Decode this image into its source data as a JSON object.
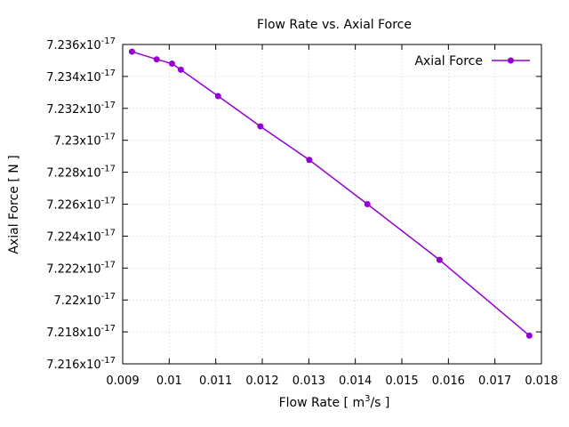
{
  "chart_data": {
    "type": "line",
    "title": "Flow Rate vs. Axial Force",
    "xlabel": "Flow Rate [ m",
    "xlabel_sup": "3",
    "xlabel_end": "/s ]",
    "ylabel": "Axial Force [ N ]",
    "xlim": [
      0.009,
      0.018
    ],
    "ylim": [
      7.216,
      7.236
    ],
    "y_exponent": "-17",
    "y_mantissa_suffix": "x10",
    "x_ticks": [
      "0.009",
      "0.01",
      "0.011",
      "0.012",
      "0.013",
      "0.014",
      "0.015",
      "0.016",
      "0.017",
      "0.018"
    ],
    "y_ticks": [
      "7.216",
      "7.218",
      "7.22",
      "7.222",
      "7.224",
      "7.226",
      "7.228",
      "7.23",
      "7.232",
      "7.234",
      "7.236"
    ],
    "grid": true,
    "legend_position": "top-right",
    "series": [
      {
        "name": "Axial Force",
        "color": "#9400d3",
        "x": [
          0.0092,
          0.00973,
          0.01006,
          0.01025,
          0.01105,
          0.01196,
          0.01301,
          0.01426,
          0.01581,
          0.01774
        ],
        "y": [
          7.23555,
          7.23507,
          7.2348,
          7.23442,
          7.23277,
          7.23087,
          7.22877,
          7.226,
          7.22251,
          7.21777
        ]
      }
    ]
  }
}
